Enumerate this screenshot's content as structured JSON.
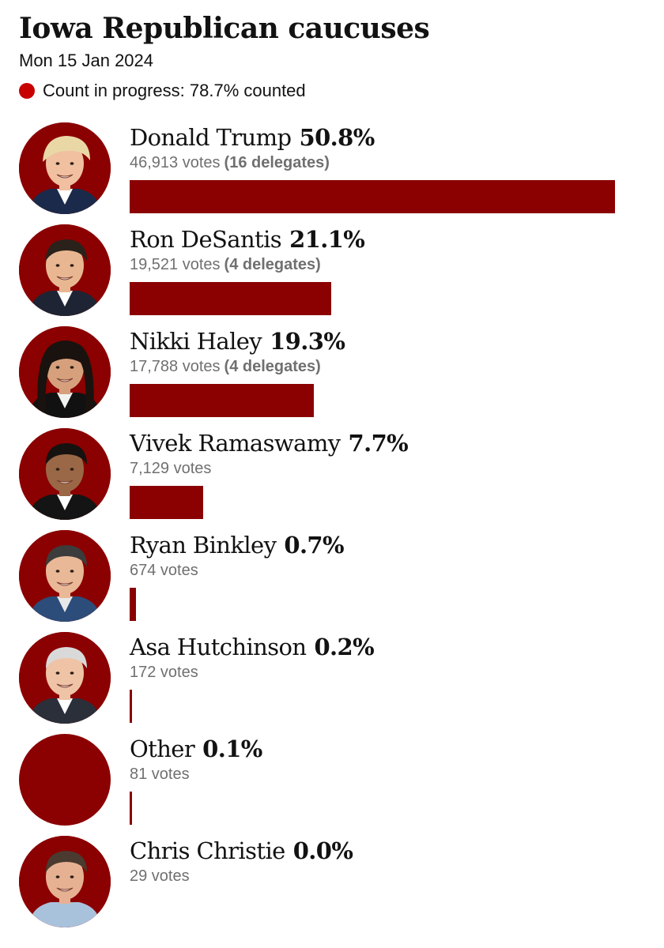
{
  "header": {
    "title": "Iowa Republican caucuses",
    "date": "Mon 15 Jan 2024",
    "status": "Count in progress: 78.7% counted"
  },
  "colors": {
    "bar": "#8b0000",
    "status_dot": "#c70000",
    "muted_text": "#707070"
  },
  "candidates": [
    {
      "name": "Donald Trump",
      "pct_label": "50.8%",
      "votes_label": "46,913 votes",
      "delegates_label": "(16 delegates)",
      "avatar_icon": "donald-trump-photo"
    },
    {
      "name": "Ron DeSantis",
      "pct_label": "21.1%",
      "votes_label": "19,521 votes",
      "delegates_label": "(4 delegates)",
      "avatar_icon": "ron-desantis-photo"
    },
    {
      "name": "Nikki Haley",
      "pct_label": "19.3%",
      "votes_label": "17,788 votes",
      "delegates_label": "(4 delegates)",
      "avatar_icon": "nikki-haley-photo"
    },
    {
      "name": "Vivek Ramaswamy",
      "pct_label": "7.7%",
      "votes_label": "7,129 votes",
      "delegates_label": "",
      "avatar_icon": "vivek-ramaswamy-photo"
    },
    {
      "name": "Ryan Binkley",
      "pct_label": "0.7%",
      "votes_label": "674 votes",
      "delegates_label": "",
      "avatar_icon": "ryan-binkley-photo"
    },
    {
      "name": "Asa Hutchinson",
      "pct_label": "0.2%",
      "votes_label": "172 votes",
      "delegates_label": "",
      "avatar_icon": "asa-hutchinson-photo"
    },
    {
      "name": "Other",
      "pct_label": "0.1%",
      "votes_label": "81 votes",
      "delegates_label": "",
      "avatar_icon": "other-placeholder-circle"
    },
    {
      "name": "Chris Christie",
      "pct_label": "0.0%",
      "votes_label": "29 votes",
      "delegates_label": "",
      "avatar_icon": "chris-christie-photo"
    }
  ],
  "chart_data": {
    "type": "bar",
    "orientation": "horizontal",
    "title": "Iowa Republican caucuses",
    "subtitle": "Mon 15 Jan 2024",
    "categories": [
      "Donald Trump",
      "Ron DeSantis",
      "Nikki Haley",
      "Vivek Ramaswamy",
      "Ryan Binkley",
      "Asa Hutchinson",
      "Other",
      "Chris Christie"
    ],
    "values": [
      50.8,
      21.1,
      19.3,
      7.7,
      0.7,
      0.2,
      0.1,
      0.0
    ],
    "votes": [
      46913,
      19521,
      17788,
      7129,
      674,
      172,
      81,
      29
    ],
    "delegates": [
      16,
      4,
      4,
      null,
      null,
      null,
      null,
      null
    ],
    "unit": "%",
    "xlim": [
      0,
      50.8
    ],
    "grid": false,
    "legend": "none"
  }
}
